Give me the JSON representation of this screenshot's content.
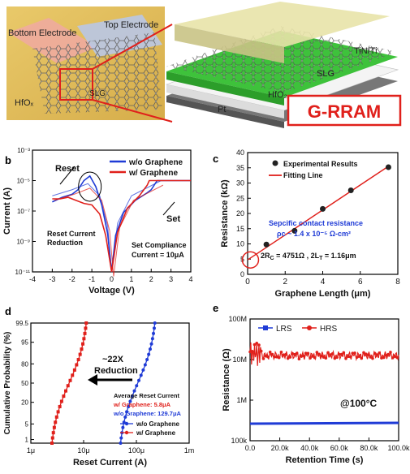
{
  "top": {
    "left_labels": {
      "bottom_electrode": "Bottom Electrode",
      "top_electrode": "Top Electrode",
      "slg": "SLG",
      "hfox": "HfOₓ"
    },
    "right_labels": {
      "tin_ti": "TiN/Ti",
      "slg": "SLG",
      "hfo2": "HfO₂",
      "pt": "Pt"
    },
    "badge": "G-RRAM",
    "colors": {
      "badge": "#e0201b",
      "slg_layer": "#3ec23b",
      "hfo2_layer": "#f4f4f4",
      "pt_layer": "#777777",
      "top_layer": "#e8e3a8"
    }
  },
  "panels": {
    "b": "b",
    "c": "c",
    "d": "d",
    "e": "e"
  },
  "chart_data": [
    {
      "panel": "b",
      "type": "line",
      "xlabel": "Voltage (V)",
      "ylabel": "Current (A)",
      "xlim": [
        -4,
        4
      ],
      "ylim_log10": [
        -11,
        -3
      ],
      "x_ticks": [
        "-4",
        "-3",
        "-2",
        "-1",
        "0",
        "1",
        "2",
        "3",
        "4"
      ],
      "y_ticks": [
        "10⁻¹¹",
        "10⁻⁹",
        "10⁻⁷",
        "10⁻⁵",
        "10⁻³"
      ],
      "series": [
        {
          "name": "w/o Graphene",
          "color": "#1f3bd6",
          "points": [
            [
              -3,
              -6.4
            ],
            [
              -2.5,
              -6.1
            ],
            [
              -2,
              -5.9
            ],
            [
              -1.7,
              -5.6
            ],
            [
              -1.4,
              -5.0
            ],
            [
              -1.1,
              -4.7
            ],
            [
              -0.8,
              -5.4
            ],
            [
              -0.5,
              -6.6
            ],
            [
              -0.2,
              -8.5
            ],
            [
              0,
              -11
            ],
            [
              0.2,
              -8.6
            ],
            [
              0.6,
              -7.1
            ],
            [
              1.2,
              -6.3
            ],
            [
              1.8,
              -5.8
            ],
            [
              2.0,
              -5.6
            ],
            [
              2.3,
              -5.0
            ],
            [
              4,
              -5.0
            ]
          ]
        },
        {
          "name": "w/ Graphene",
          "color": "#e0201b",
          "points": [
            [
              -3,
              -6.2
            ],
            [
              -2.6,
              -6.2
            ],
            [
              -2.2,
              -6.1
            ],
            [
              -1.8,
              -6.3
            ],
            [
              -1.4,
              -6.5
            ],
            [
              -1.0,
              -6.6
            ],
            [
              -0.6,
              -7.2
            ],
            [
              -0.3,
              -8.6
            ],
            [
              0,
              -11
            ],
            [
              0.3,
              -8.4
            ],
            [
              0.8,
              -6.8
            ],
            [
              1.4,
              -6.0
            ],
            [
              1.8,
              -5.3
            ],
            [
              1.9,
              -5.0
            ],
            [
              4,
              -5.0
            ]
          ]
        }
      ],
      "annotations": [
        "Reset",
        "Set",
        "Reset Current",
        "Reduction",
        "Set Compliance",
        "Current = 10μA"
      ],
      "legend_position": "top-right"
    },
    {
      "panel": "c",
      "type": "scatter",
      "xlabel": "Graphene Length (μm)",
      "ylabel": "Resistance (kΩ)",
      "xlim": [
        0,
        8
      ],
      "ylim": [
        0,
        40
      ],
      "x_ticks": [
        "0",
        "2",
        "4",
        "6",
        "8"
      ],
      "y_ticks": [
        "0",
        "5",
        "10",
        "15",
        "20",
        "25",
        "30",
        "35",
        "40"
      ],
      "series": [
        {
          "name": "Experimental Results",
          "color": "#222222",
          "x": [
            1,
            2.5,
            4,
            5.5,
            7.5
          ],
          "y": [
            9.8,
            14.3,
            21.5,
            27.6,
            35.2
          ]
        },
        {
          "name": "Fitting Line",
          "color": "#e0201b",
          "x": [
            0,
            7.5
          ],
          "y": [
            4.75,
            35.5
          ]
        }
      ],
      "annotations": [
        "Sepcific contact resistance",
        "ρc ~ 1.4 x 10⁻⁵ Ω-cm²",
        "2R",
        "C",
        " = 4751Ω , 2L",
        "T",
        " = 1.16μm"
      ],
      "legend_position": "top-left"
    },
    {
      "panel": "d",
      "type": "scatter",
      "xlabel": "Reset Current (A)",
      "ylabel": "Cumulative Probability (%)",
      "x_log10_range": [
        -6,
        -3
      ],
      "x_ticks": [
        "1μ",
        "10μ",
        "100μ",
        "1m"
      ],
      "y_ticks": [
        "1",
        "5",
        "20",
        "50",
        "80",
        "95",
        "99.5"
      ],
      "series": [
        {
          "name": "w/ Graphene",
          "color": "#e0201b",
          "log10_x_start": -5.6,
          "log10_x_end": -4.95
        },
        {
          "name": "w/o Graphene",
          "color": "#1f3bd6",
          "log10_x_start": -4.3,
          "log10_x_end": -3.65
        }
      ],
      "annotations": [
        "~22X",
        "Reduction",
        "Average Reset Current",
        "w/ Graphene: 5.8μA",
        "w/o Graphene: 129.7μA"
      ],
      "legend_position": "bottom-right"
    },
    {
      "panel": "e",
      "type": "scatter",
      "xlabel": "Retention Time (s)",
      "ylabel": "Resistance (Ω)",
      "xlim": [
        0,
        100000
      ],
      "y_log10_range": [
        5,
        8
      ],
      "x_ticks": [
        "0.0",
        "20.0k",
        "40.0k",
        "60.0k",
        "80.0k",
        "100.0k"
      ],
      "y_ticks": [
        "100k",
        "1M",
        "10M",
        "100M"
      ],
      "series": [
        {
          "name": "LRS",
          "color": "#1f3bd6",
          "log10_level": 5.42
        },
        {
          "name": "HRS",
          "color": "#e0201b",
          "log10_level": 7.1
        }
      ],
      "annotations": [
        "@100°C"
      ],
      "legend_position": "top-left"
    }
  ]
}
